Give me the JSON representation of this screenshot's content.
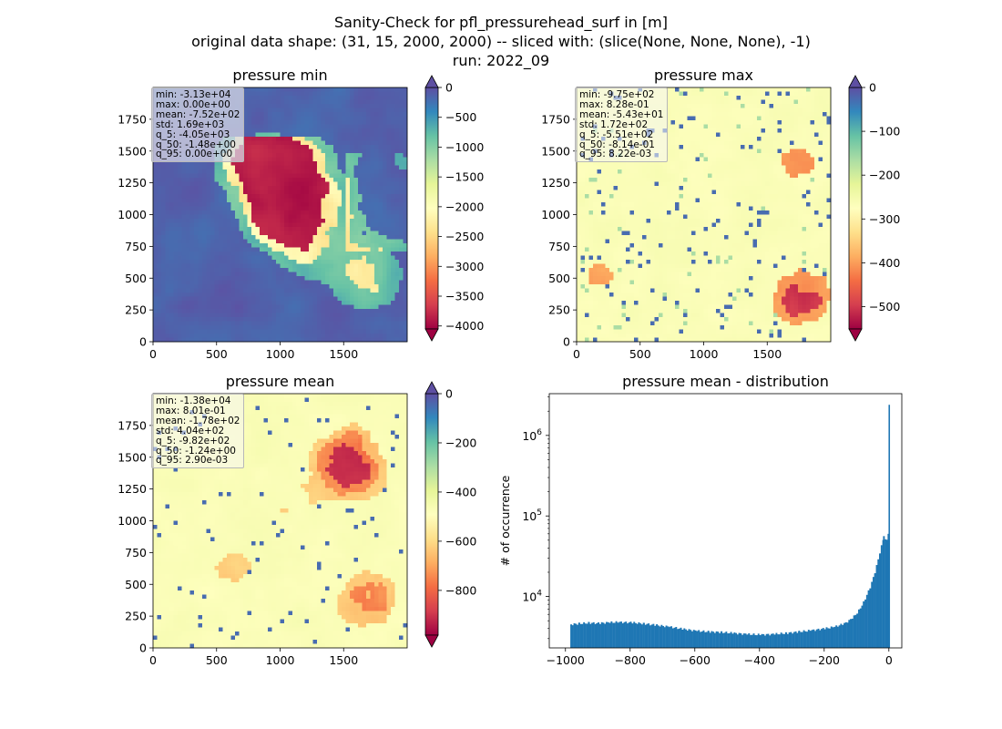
{
  "figure": {
    "title_lines": [
      "Sanity-Check for pfl_pressurehead_surf in [m]",
      "original data shape: (31, 15, 2000, 2000) -- sliced with: (slice(None, None, None), -1)",
      "run: 2022_09"
    ]
  },
  "colormap": "Spectral",
  "chart_data": [
    {
      "type": "heatmap",
      "title": "pressure min",
      "xticks": [
        0,
        500,
        1000,
        1500
      ],
      "yticks": [
        0,
        250,
        500,
        750,
        1000,
        1250,
        1500,
        1750
      ],
      "xlim": [
        0,
        2000
      ],
      "ylim": [
        0,
        2000
      ],
      "colorbar": {
        "range": [
          -4050,
          0
        ],
        "ticks": [
          0,
          -500,
          -1000,
          -1500,
          -2000,
          -2500,
          -3000,
          -3500,
          -4000
        ],
        "extend": "both"
      },
      "stats": [
        "min: -3.13e+04",
        "max: 0.00e+00",
        "mean: -7.52e+02",
        "std: 1.69e+03",
        "q_5: -4.05e+03",
        "q_50: -1.48e+00",
        "q_95: 0.00e+00"
      ]
    },
    {
      "type": "heatmap",
      "title": "pressure max",
      "xticks": [
        0,
        500,
        1000,
        1500
      ],
      "yticks": [
        0,
        250,
        500,
        750,
        1000,
        1250,
        1500,
        1750
      ],
      "xlim": [
        0,
        2000
      ],
      "ylim": [
        0,
        2000
      ],
      "colorbar": {
        "range": [
          -551,
          0
        ],
        "ticks": [
          0,
          -100,
          -200,
          -300,
          -400,
          -500
        ],
        "extend": "both"
      },
      "stats": [
        "min: -9.75e+02",
        "max: 8.28e-01",
        "mean: -5.43e+01",
        "std: 1.72e+02",
        "q_5: -5.51e+02",
        "q_50: -8.14e-01",
        "q_95: 8.22e-03"
      ]
    },
    {
      "type": "heatmap",
      "title": "pressure mean",
      "xticks": [
        0,
        500,
        1000,
        1500
      ],
      "yticks": [
        0,
        250,
        500,
        750,
        1000,
        1250,
        1500,
        1750
      ],
      "xlim": [
        0,
        2000
      ],
      "ylim": [
        0,
        2000
      ],
      "colorbar": {
        "range": [
          -982,
          0
        ],
        "ticks": [
          0,
          -200,
          -400,
          -600,
          -800
        ],
        "extend": "both"
      },
      "stats": [
        "min: -1.38e+04",
        "max: 8.01e-01",
        "mean: -1.78e+02",
        "std: 4.04e+02",
        "q_5: -9.82e+02",
        "q_50: -1.24e+00",
        "q_95: 2.90e-03"
      ]
    },
    {
      "type": "bar",
      "title": "pressure mean - distribution",
      "ylabel": "# of occurrence",
      "yscale": "log",
      "xlim": [
        -1050,
        40
      ],
      "ylim": [
        2300,
        3300000
      ],
      "xticks": [
        -1000,
        -800,
        -600,
        -400,
        -200,
        0
      ],
      "yticks": [
        {
          "value": 10000,
          "base": "10",
          "exp": "4"
        },
        {
          "value": 100000,
          "base": "10",
          "exp": "5"
        },
        {
          "value": 1000000,
          "base": "10",
          "exp": "6"
        }
      ],
      "bin_width": 4.9,
      "bins": [
        [
          -985,
          4500
        ],
        [
          -960,
          4600
        ],
        [
          -930,
          4700
        ],
        [
          -900,
          4650
        ],
        [
          -870,
          4750
        ],
        [
          -840,
          4800
        ],
        [
          -800,
          4750
        ],
        [
          -760,
          4600
        ],
        [
          -720,
          4400
        ],
        [
          -680,
          4200
        ],
        [
          -640,
          3950
        ],
        [
          -600,
          3750
        ],
        [
          -560,
          3650
        ],
        [
          -520,
          3600
        ],
        [
          -480,
          3500
        ],
        [
          -440,
          3400
        ],
        [
          -400,
          3350
        ],
        [
          -360,
          3400
        ],
        [
          -320,
          3500
        ],
        [
          -280,
          3650
        ],
        [
          -240,
          3800
        ],
        [
          -200,
          4000
        ],
        [
          -170,
          4200
        ],
        [
          -140,
          4600
        ],
        [
          -120,
          5200
        ],
        [
          -100,
          6200
        ],
        [
          -80,
          8500
        ],
        [
          -60,
          13000
        ],
        [
          -45,
          20000
        ],
        [
          -30,
          35000
        ],
        [
          -18,
          55000
        ],
        [
          -12,
          50000
        ],
        [
          -8,
          52000
        ],
        [
          -4,
          60000
        ],
        [
          0,
          2400000
        ]
      ],
      "color": "#1f77b4"
    }
  ]
}
